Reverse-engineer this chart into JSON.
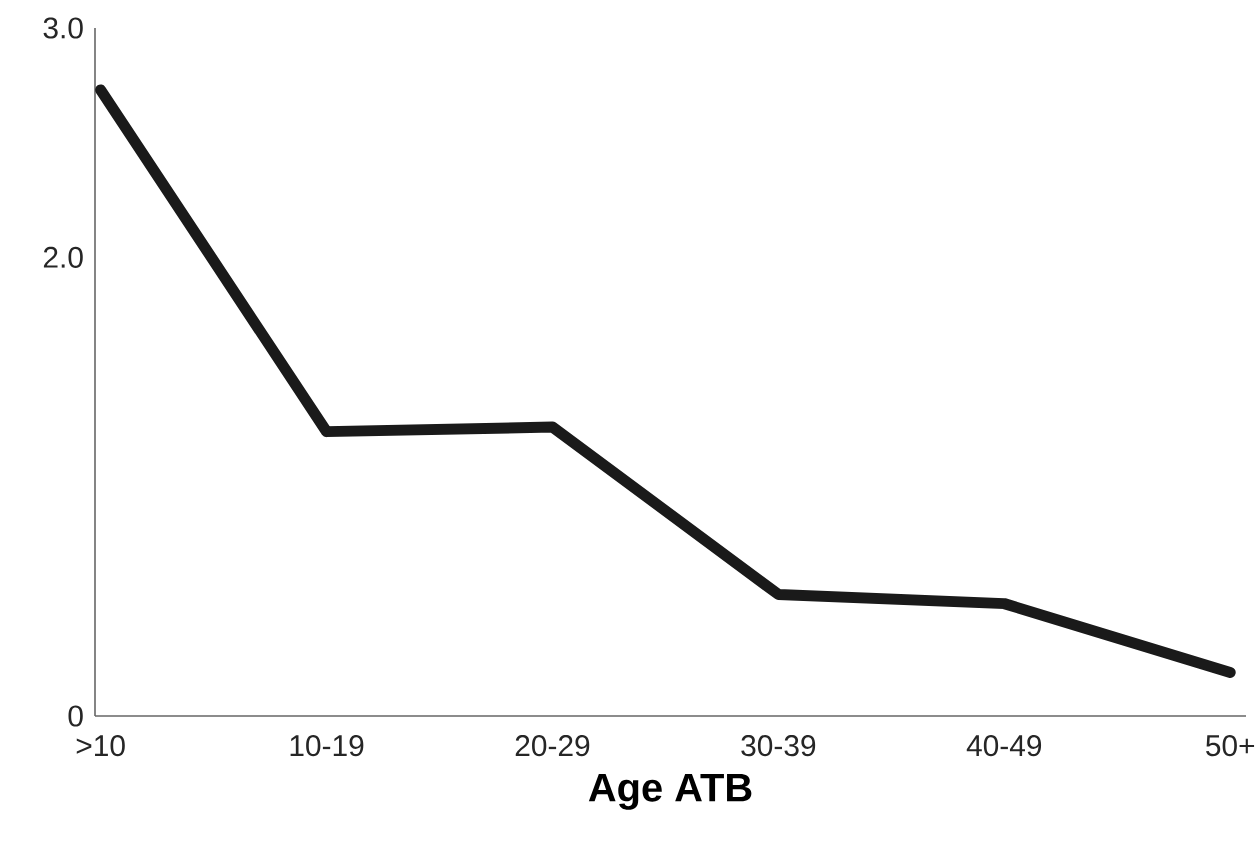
{
  "chart_data": {
    "type": "line",
    "xlabel": "Age ATB",
    "categories": [
      ">10",
      "10-19",
      "20-29",
      "30-39",
      "40-49",
      "50+"
    ],
    "values": [
      2.73,
      1.24,
      1.26,
      0.53,
      0.49,
      0.19
    ],
    "color": "#1a1a1a",
    "ylim": [
      0,
      3
    ],
    "yticks": [
      0,
      {
        "value": 2,
        "label": "2.0"
      },
      {
        "value": 3,
        "label": "3.0"
      }
    ],
    "marker": "none",
    "line_style": "solid"
  }
}
